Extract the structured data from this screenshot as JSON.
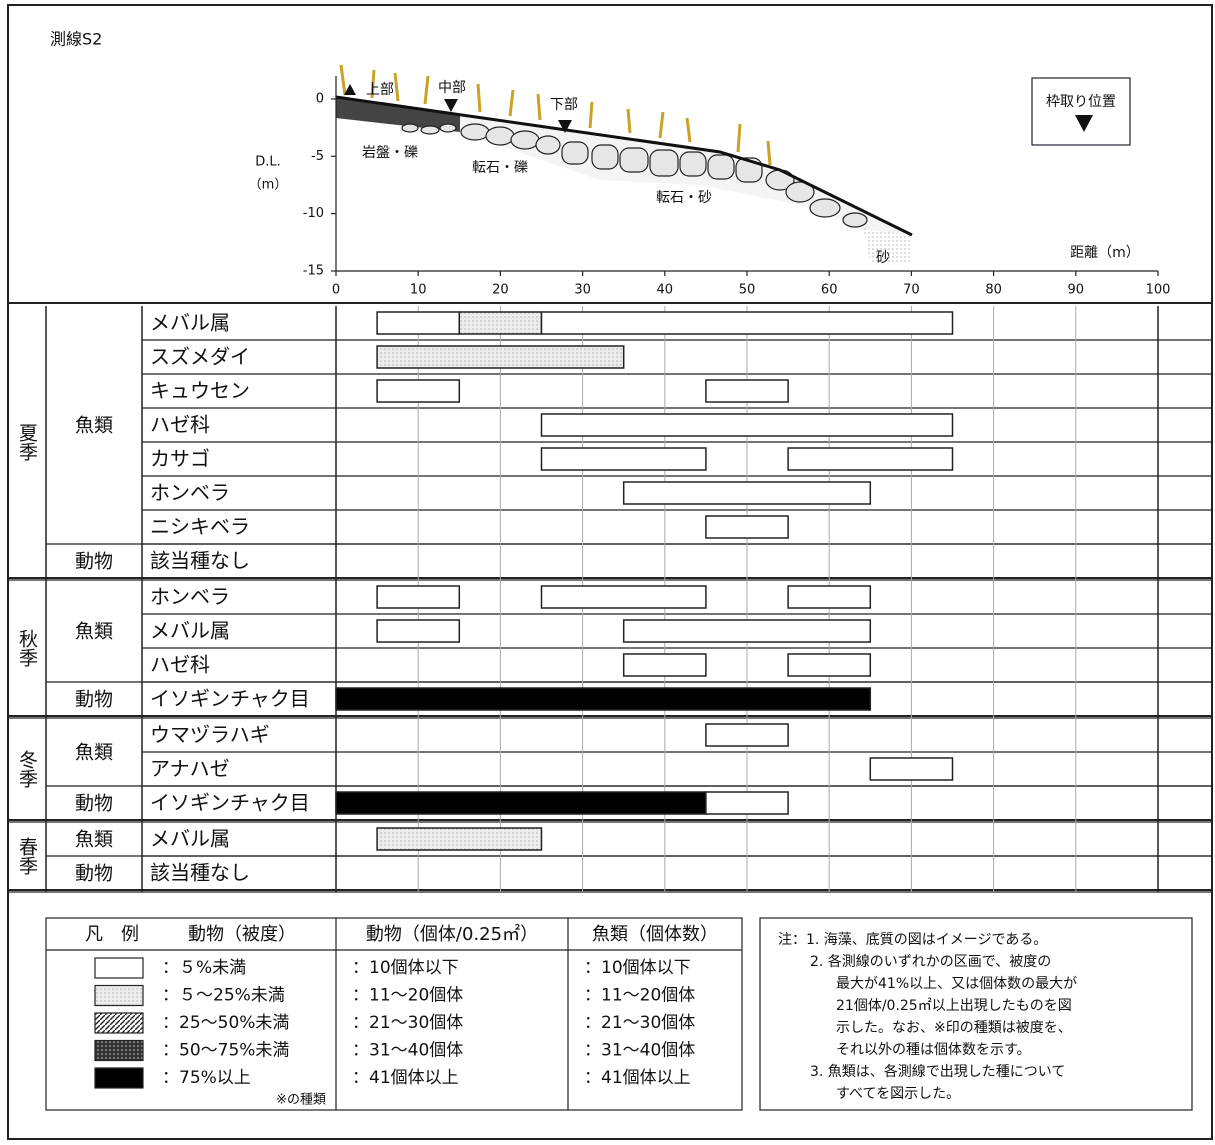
{
  "chart_data": {
    "type": "range",
    "title": "測線S2",
    "profile": {
      "ylabel": [
        "D.L.",
        "（m）"
      ],
      "xlabel": "距離（m）",
      "ylim": [
        -15,
        2
      ],
      "yticks": [
        0,
        -5,
        -10,
        -15
      ],
      "markers": [
        "上部",
        "中部",
        "下部"
      ],
      "substrates": [
        "岩盤・礫",
        "転石・礫",
        "転石・砂",
        "砂"
      ],
      "marker_legend": "枠取り位置"
    },
    "xlim": [
      0,
      100
    ],
    "xticks": [
      0,
      10,
      20,
      30,
      40,
      50,
      60,
      70,
      80,
      90,
      100
    ],
    "seasons": [
      {
        "name": "夏季",
        "groups": [
          {
            "name": "魚類",
            "rows": [
              {
                "species": "メバル属",
                "segments": [
                  [
                    5,
                    15,
                    0
                  ],
                  [
                    15,
                    25,
                    1
                  ],
                  [
                    25,
                    75,
                    0
                  ]
                ]
              },
              {
                "species": "スズメダイ",
                "segments": [
                  [
                    5,
                    35,
                    1
                  ]
                ]
              },
              {
                "species": "キュウセン",
                "segments": [
                  [
                    5,
                    15,
                    0
                  ],
                  [
                    45,
                    55,
                    0
                  ]
                ]
              },
              {
                "species": "ハゼ科",
                "segments": [
                  [
                    25,
                    75,
                    0
                  ]
                ]
              },
              {
                "species": "カサゴ",
                "segments": [
                  [
                    25,
                    45,
                    0
                  ],
                  [
                    55,
                    75,
                    0
                  ]
                ]
              },
              {
                "species": "ホンベラ",
                "segments": [
                  [
                    35,
                    65,
                    0
                  ]
                ]
              },
              {
                "species": "ニシキベラ",
                "segments": [
                  [
                    45,
                    55,
                    0
                  ]
                ]
              }
            ]
          },
          {
            "name": "動物",
            "rows": [
              {
                "species": "該当種なし",
                "segments": []
              }
            ]
          }
        ]
      },
      {
        "name": "秋季",
        "groups": [
          {
            "name": "魚類",
            "rows": [
              {
                "species": "ホンベラ",
                "segments": [
                  [
                    5,
                    15,
                    0
                  ],
                  [
                    25,
                    45,
                    0
                  ],
                  [
                    55,
                    65,
                    0
                  ]
                ]
              },
              {
                "species": "メバル属",
                "segments": [
                  [
                    5,
                    15,
                    0
                  ],
                  [
                    35,
                    65,
                    0
                  ]
                ]
              },
              {
                "species": "ハゼ科",
                "segments": [
                  [
                    35,
                    45,
                    0
                  ],
                  [
                    55,
                    65,
                    0
                  ]
                ]
              }
            ]
          },
          {
            "name": "動物",
            "rows": [
              {
                "species": "イソギンチャク目",
                "segments": [
                  [
                    0,
                    65,
                    4
                  ]
                ]
              }
            ]
          }
        ]
      },
      {
        "name": "冬季",
        "groups": [
          {
            "name": "魚類",
            "rows": [
              {
                "species": "ウマヅラハギ",
                "segments": [
                  [
                    45,
                    55,
                    0
                  ]
                ]
              },
              {
                "species": "アナハゼ",
                "segments": [
                  [
                    65,
                    75,
                    0
                  ]
                ]
              }
            ]
          },
          {
            "name": "動物",
            "rows": [
              {
                "species": "イソギンチャク目",
                "segments": [
                  [
                    0,
                    45,
                    4
                  ],
                  [
                    45,
                    55,
                    0
                  ]
                ]
              }
            ]
          }
        ]
      },
      {
        "name": "春季",
        "groups": [
          {
            "name": "魚類",
            "rows": [
              {
                "species": "メバル属",
                "segments": [
                  [
                    5,
                    25,
                    1
                  ]
                ]
              }
            ]
          },
          {
            "name": "動物",
            "rows": [
              {
                "species": "該当種なし",
                "segments": []
              }
            ]
          }
        ]
      }
    ],
    "legend": {
      "title": "凡　例",
      "columns": [
        {
          "header": "動物（被度）",
          "items": [
            "：５%未満",
            "：５～25%未満",
            "：25～50%未満",
            "：50～75%未満",
            "：75%以上"
          ],
          "footnote": "※の種類"
        },
        {
          "header": "動物（個体/0.25㎡）",
          "items": [
            "：10個体以下",
            "：11～20個体",
            "：21～30個体",
            "：31～40個体",
            "：41個体以上"
          ]
        },
        {
          "header": "魚類（個体数）",
          "items": [
            "：10個体以下",
            "：11～20個体",
            "：21～30個体",
            "：31～40個体",
            "：41個体以上"
          ]
        }
      ],
      "notes": [
        "注：1. 海藻、底質の図はイメージである。",
        "2. 各測線のいずれかの区画で、被度の",
        "最大が41%以上、又は個体数の最大が",
        "21個体/0.25㎡以上出現したものを図",
        "示した。なお、※印の種類は被度を、",
        "それ以外の種は個体数を示す。",
        "3. 魚類は、各測線で出現した種について",
        "すべてを図示した。"
      ]
    }
  }
}
